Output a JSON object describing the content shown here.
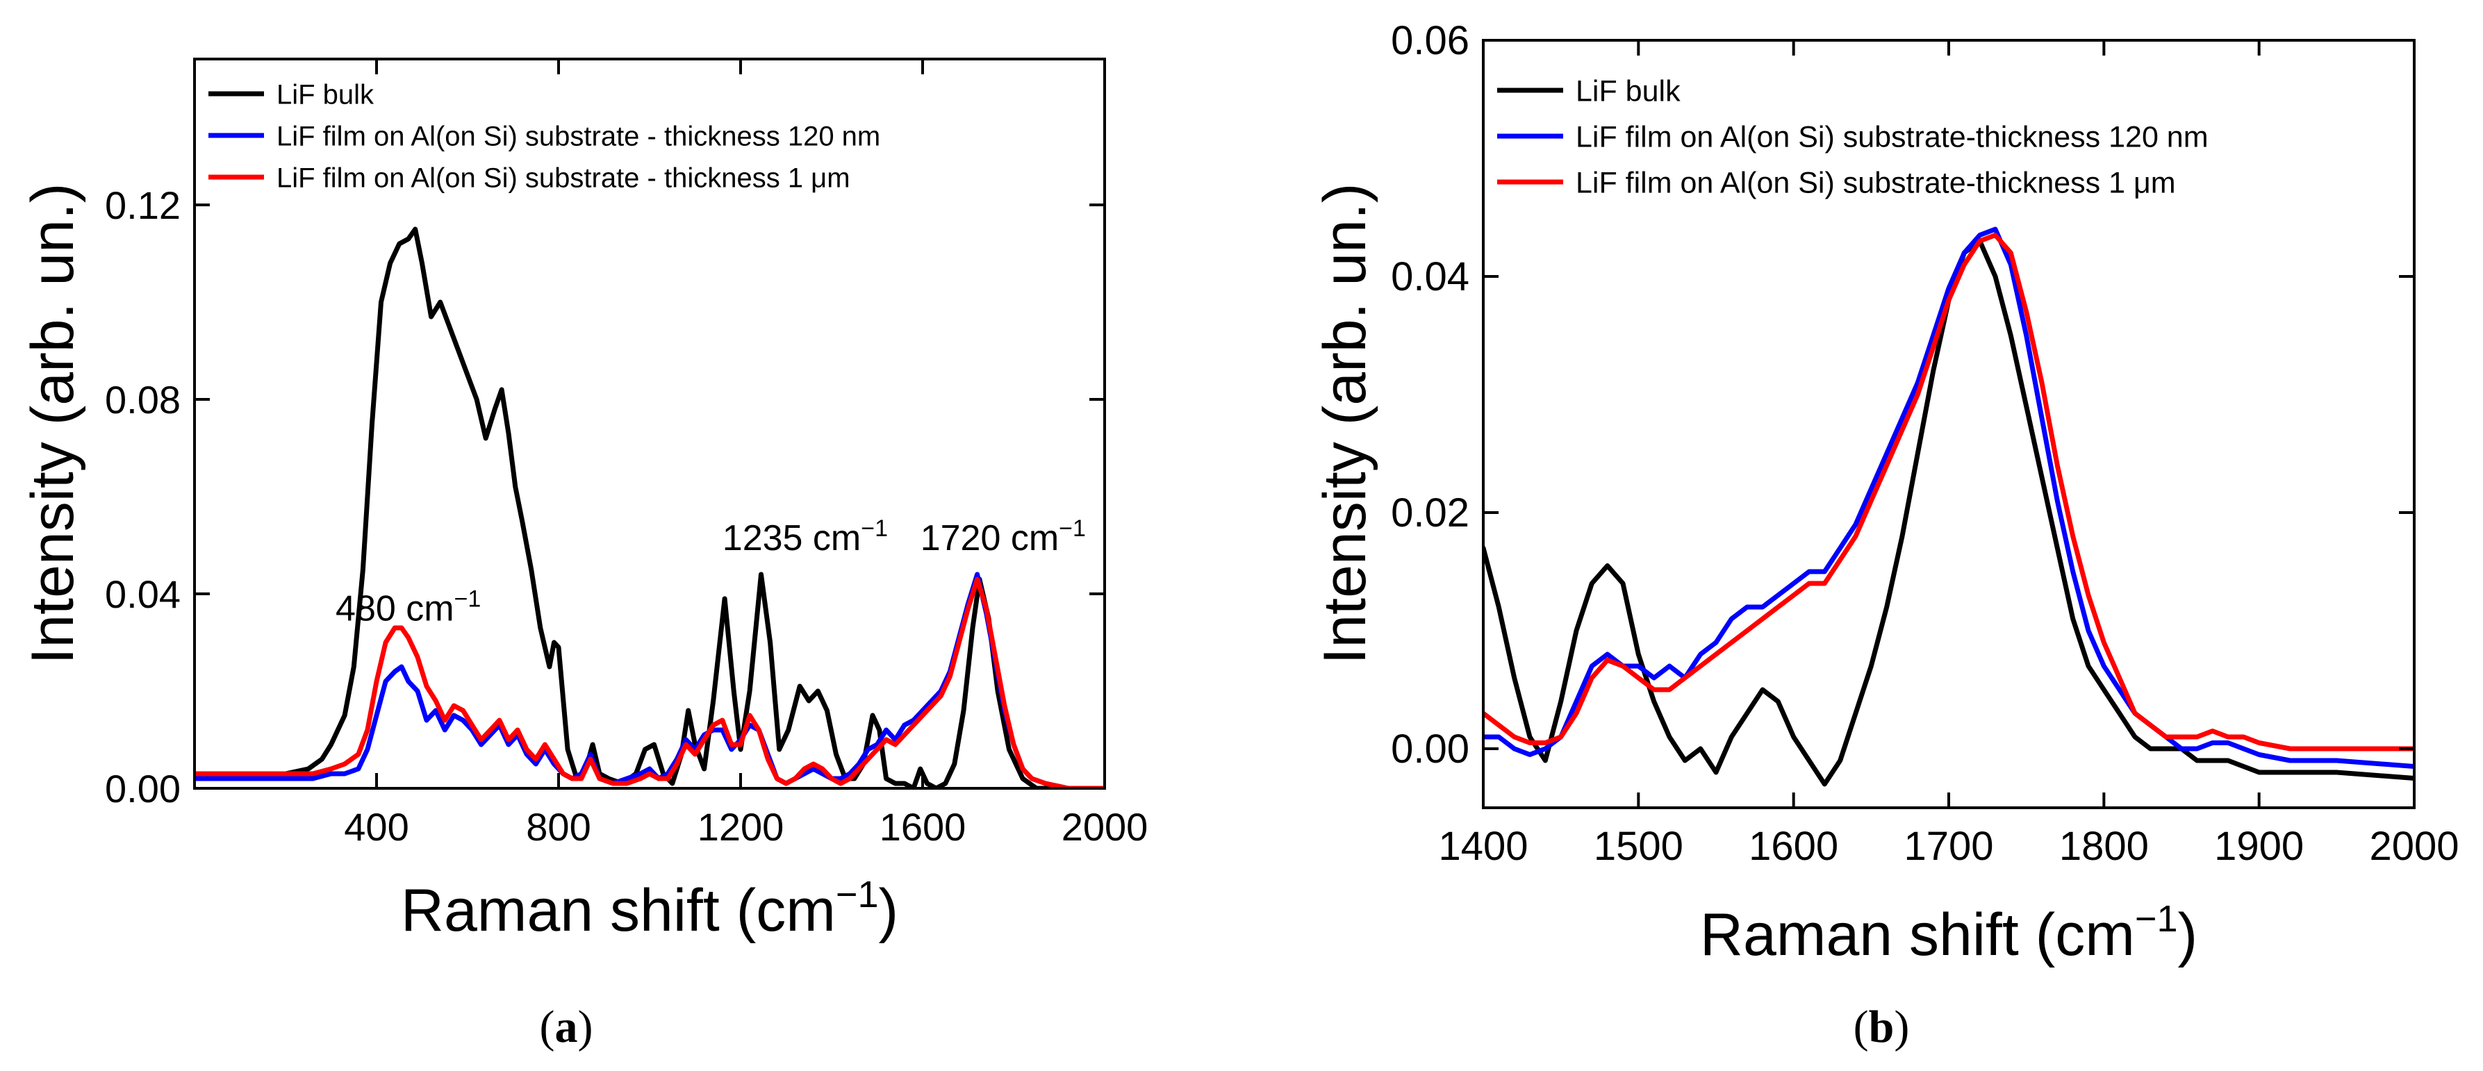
{
  "figure": {
    "panel_a_letter": "a",
    "panel_b_letter": "b"
  },
  "chart_data": [
    {
      "type": "line",
      "panel": "(a)",
      "xlabel_main": "Raman shift (cm",
      "xlabel_sup": "−1",
      "xlabel_close": ")",
      "ylabel": "Intensity (arb. un.)",
      "xlim": [
        0,
        2000
      ],
      "ylim": [
        0,
        0.15
      ],
      "xticks": [
        400,
        800,
        1200,
        1600,
        2000
      ],
      "yticks": [
        0.0,
        0.04,
        0.08,
        0.12
      ],
      "ytick_labels": [
        "0.00",
        "0.04",
        "0.08",
        "0.12"
      ],
      "legend_position": "top-left",
      "annotations": [
        {
          "main": "480 cm",
          "sup": "−1",
          "x": 310,
          "y": 0.0345
        },
        {
          "main": "1235 cm",
          "sup": "−1",
          "x": 1160,
          "y": 0.049
        },
        {
          "main": "1720 cm",
          "sup": "−1",
          "x": 1595,
          "y": 0.049
        }
      ],
      "series": [
        {
          "name": "LiF bulk",
          "color": "#000000",
          "x": [
            0,
            100,
            200,
            250,
            280,
            300,
            330,
            350,
            370,
            390,
            410,
            430,
            450,
            470,
            485,
            500,
            520,
            540,
            560,
            580,
            600,
            620,
            640,
            660,
            675,
            690,
            705,
            720,
            740,
            760,
            780,
            790,
            800,
            820,
            840,
            860,
            875,
            890,
            910,
            940,
            970,
            990,
            1010,
            1030,
            1050,
            1070,
            1085,
            1100,
            1120,
            1140,
            1165,
            1185,
            1200,
            1220,
            1245,
            1265,
            1285,
            1305,
            1330,
            1350,
            1370,
            1390,
            1410,
            1430,
            1450,
            1470,
            1490,
            1505,
            1520,
            1540,
            1560,
            1580,
            1595,
            1610,
            1630,
            1650,
            1670,
            1690,
            1710,
            1725,
            1745,
            1765,
            1790,
            1820,
            1850,
            1900,
            2000
          ],
          "values": [
            0.003,
            0.003,
            0.003,
            0.004,
            0.006,
            0.009,
            0.015,
            0.025,
            0.045,
            0.075,
            0.1,
            0.108,
            0.112,
            0.113,
            0.115,
            0.108,
            0.097,
            0.1,
            0.095,
            0.09,
            0.085,
            0.08,
            0.072,
            0.078,
            0.082,
            0.073,
            0.062,
            0.055,
            0.045,
            0.033,
            0.025,
            0.03,
            0.029,
            0.008,
            0.002,
            0.004,
            0.009,
            0.003,
            0.002,
            0.001,
            0.003,
            0.008,
            0.009,
            0.003,
            0.001,
            0.007,
            0.016,
            0.009,
            0.004,
            0.018,
            0.039,
            0.02,
            0.008,
            0.02,
            0.044,
            0.03,
            0.008,
            0.012,
            0.021,
            0.018,
            0.02,
            0.016,
            0.007,
            0.002,
            0.002,
            0.005,
            0.015,
            0.012,
            0.002,
            0.001,
            0.001,
            0.0,
            0.004,
            0.001,
            0.0,
            0.001,
            0.005,
            0.016,
            0.033,
            0.043,
            0.035,
            0.02,
            0.008,
            0.002,
            0.0,
            0.0,
            0.0
          ]
        },
        {
          "name": "LiF film on Al(on Si) substrate - thickness 120 nm",
          "color": "#0000ff",
          "x": [
            0,
            100,
            200,
            260,
            300,
            330,
            360,
            380,
            400,
            420,
            440,
            455,
            470,
            490,
            510,
            530,
            550,
            570,
            590,
            610,
            630,
            650,
            670,
            690,
            710,
            730,
            750,
            770,
            790,
            810,
            830,
            850,
            870,
            890,
            920,
            950,
            980,
            1000,
            1020,
            1040,
            1060,
            1080,
            1100,
            1120,
            1140,
            1160,
            1180,
            1200,
            1220,
            1240,
            1260,
            1280,
            1300,
            1320,
            1340,
            1360,
            1380,
            1400,
            1420,
            1440,
            1460,
            1480,
            1500,
            1520,
            1540,
            1560,
            1580,
            1600,
            1620,
            1640,
            1660,
            1680,
            1700,
            1720,
            1740,
            1760,
            1780,
            1800,
            1820,
            1840,
            1870,
            1920,
            2000
          ],
          "values": [
            0.002,
            0.002,
            0.002,
            0.002,
            0.003,
            0.003,
            0.004,
            0.008,
            0.015,
            0.022,
            0.024,
            0.025,
            0.022,
            0.02,
            0.014,
            0.016,
            0.012,
            0.015,
            0.014,
            0.012,
            0.009,
            0.011,
            0.013,
            0.009,
            0.011,
            0.007,
            0.005,
            0.008,
            0.005,
            0.003,
            0.002,
            0.003,
            0.007,
            0.002,
            0.001,
            0.002,
            0.003,
            0.004,
            0.002,
            0.003,
            0.006,
            0.01,
            0.008,
            0.011,
            0.012,
            0.012,
            0.008,
            0.01,
            0.013,
            0.012,
            0.007,
            0.002,
            0.001,
            0.002,
            0.003,
            0.004,
            0.003,
            0.002,
            0.002,
            0.003,
            0.005,
            0.008,
            0.009,
            0.012,
            0.01,
            0.013,
            0.014,
            0.016,
            0.018,
            0.02,
            0.024,
            0.031,
            0.038,
            0.044,
            0.036,
            0.026,
            0.016,
            0.009,
            0.004,
            0.002,
            0.001,
            0.0,
            0.0
          ]
        },
        {
          "name": "LiF film on Al(on Si)  substrate - thickness 1 μm",
          "color": "#ff0000",
          "x": [
            0,
            100,
            200,
            260,
            300,
            330,
            360,
            380,
            400,
            420,
            440,
            455,
            470,
            490,
            510,
            530,
            550,
            570,
            590,
            610,
            630,
            650,
            670,
            690,
            710,
            730,
            750,
            770,
            790,
            810,
            830,
            850,
            870,
            890,
            920,
            950,
            980,
            1000,
            1020,
            1040,
            1060,
            1080,
            1100,
            1120,
            1140,
            1160,
            1180,
            1200,
            1220,
            1240,
            1260,
            1280,
            1300,
            1320,
            1340,
            1360,
            1380,
            1400,
            1420,
            1440,
            1460,
            1480,
            1500,
            1520,
            1540,
            1560,
            1580,
            1600,
            1620,
            1640,
            1660,
            1680,
            1700,
            1720,
            1740,
            1760,
            1780,
            1800,
            1820,
            1840,
            1870,
            1920,
            2000
          ],
          "values": [
            0.003,
            0.003,
            0.003,
            0.003,
            0.004,
            0.005,
            0.007,
            0.012,
            0.022,
            0.03,
            0.033,
            0.033,
            0.031,
            0.027,
            0.021,
            0.018,
            0.014,
            0.017,
            0.016,
            0.013,
            0.01,
            0.012,
            0.014,
            0.01,
            0.012,
            0.008,
            0.006,
            0.009,
            0.006,
            0.003,
            0.002,
            0.002,
            0.006,
            0.002,
            0.001,
            0.001,
            0.002,
            0.003,
            0.002,
            0.002,
            0.005,
            0.009,
            0.007,
            0.01,
            0.013,
            0.014,
            0.009,
            0.009,
            0.015,
            0.012,
            0.006,
            0.002,
            0.001,
            0.002,
            0.004,
            0.005,
            0.004,
            0.002,
            0.001,
            0.002,
            0.004,
            0.006,
            0.008,
            0.01,
            0.009,
            0.011,
            0.013,
            0.015,
            0.017,
            0.019,
            0.023,
            0.03,
            0.037,
            0.043,
            0.037,
            0.027,
            0.017,
            0.009,
            0.004,
            0.002,
            0.001,
            0.0,
            0.0
          ]
        }
      ]
    },
    {
      "type": "line",
      "panel": "(b)",
      "xlabel_main": "Raman shift (cm",
      "xlabel_sup": "−1",
      "xlabel_close": ")",
      "ylabel": "Intensity (arb. un.)",
      "xlim": [
        1400,
        2000
      ],
      "ylim": [
        -0.005,
        0.06
      ],
      "xticks": [
        1400,
        1500,
        1600,
        1700,
        1800,
        1900,
        2000
      ],
      "yticks": [
        0.0,
        0.02,
        0.04,
        0.06
      ],
      "ytick_labels": [
        "0.00",
        "0.02",
        "0.04",
        "0.06"
      ],
      "legend_position": "top-left",
      "series": [
        {
          "name": "LiF bulk",
          "color": "#000000",
          "x": [
            1400,
            1410,
            1420,
            1430,
            1440,
            1450,
            1460,
            1470,
            1480,
            1490,
            1500,
            1510,
            1520,
            1530,
            1540,
            1550,
            1560,
            1570,
            1580,
            1590,
            1600,
            1610,
            1620,
            1630,
            1640,
            1650,
            1660,
            1670,
            1680,
            1690,
            1700,
            1710,
            1720,
            1730,
            1740,
            1750,
            1760,
            1770,
            1780,
            1790,
            1800,
            1810,
            1820,
            1830,
            1840,
            1850,
            1860,
            1870,
            1880,
            1890,
            1900,
            1920,
            1950,
            2000
          ],
          "values": [
            0.017,
            0.012,
            0.006,
            0.001,
            -0.001,
            0.004,
            0.01,
            0.014,
            0.0155,
            0.014,
            0.008,
            0.004,
            0.001,
            -0.001,
            0.0,
            -0.002,
            0.001,
            0.003,
            0.005,
            0.004,
            0.001,
            -0.001,
            -0.003,
            -0.001,
            0.003,
            0.007,
            0.012,
            0.018,
            0.025,
            0.032,
            0.038,
            0.042,
            0.043,
            0.04,
            0.035,
            0.029,
            0.023,
            0.017,
            0.011,
            0.007,
            0.005,
            0.003,
            0.001,
            0.0,
            0.0,
            0.0,
            -0.001,
            -0.001,
            -0.001,
            -0.0015,
            -0.002,
            -0.002,
            -0.002,
            -0.0025
          ]
        },
        {
          "name": "LiF film on Al(on Si) substrate-thickness 120 nm",
          "color": "#0000ff",
          "x": [
            1400,
            1410,
            1420,
            1430,
            1440,
            1450,
            1460,
            1470,
            1480,
            1490,
            1500,
            1510,
            1520,
            1530,
            1540,
            1550,
            1560,
            1570,
            1580,
            1590,
            1600,
            1610,
            1620,
            1630,
            1640,
            1650,
            1660,
            1670,
            1680,
            1690,
            1700,
            1710,
            1720,
            1730,
            1740,
            1750,
            1760,
            1770,
            1780,
            1790,
            1800,
            1810,
            1820,
            1830,
            1840,
            1850,
            1860,
            1870,
            1880,
            1890,
            1900,
            1920,
            1950,
            2000
          ],
          "values": [
            0.001,
            0.001,
            0.0,
            -0.0005,
            0.0,
            0.001,
            0.004,
            0.007,
            0.008,
            0.007,
            0.007,
            0.006,
            0.007,
            0.006,
            0.008,
            0.009,
            0.011,
            0.012,
            0.012,
            0.013,
            0.014,
            0.015,
            0.015,
            0.017,
            0.019,
            0.022,
            0.025,
            0.028,
            0.031,
            0.035,
            0.039,
            0.042,
            0.0435,
            0.044,
            0.041,
            0.035,
            0.028,
            0.021,
            0.015,
            0.01,
            0.007,
            0.005,
            0.003,
            0.002,
            0.001,
            0.0,
            0.0,
            0.0005,
            0.0005,
            0.0,
            -0.0005,
            -0.001,
            -0.001,
            -0.0015
          ]
        },
        {
          "name": "LiF film on Al(on Si)  substrate-thickness 1 μm",
          "color": "#ff0000",
          "x": [
            1400,
            1410,
            1420,
            1430,
            1440,
            1450,
            1460,
            1470,
            1480,
            1490,
            1500,
            1510,
            1520,
            1530,
            1540,
            1550,
            1560,
            1570,
            1580,
            1590,
            1600,
            1610,
            1620,
            1630,
            1640,
            1650,
            1660,
            1670,
            1680,
            1690,
            1700,
            1710,
            1720,
            1730,
            1740,
            1750,
            1760,
            1770,
            1780,
            1790,
            1800,
            1810,
            1820,
            1830,
            1840,
            1850,
            1860,
            1870,
            1880,
            1890,
            1900,
            1920,
            1950,
            2000
          ],
          "values": [
            0.003,
            0.002,
            0.001,
            0.0005,
            0.0005,
            0.001,
            0.003,
            0.006,
            0.0075,
            0.007,
            0.006,
            0.005,
            0.005,
            0.006,
            0.007,
            0.008,
            0.009,
            0.01,
            0.011,
            0.012,
            0.013,
            0.014,
            0.014,
            0.016,
            0.018,
            0.021,
            0.024,
            0.027,
            0.03,
            0.034,
            0.038,
            0.041,
            0.043,
            0.0435,
            0.042,
            0.037,
            0.031,
            0.024,
            0.018,
            0.013,
            0.009,
            0.006,
            0.003,
            0.002,
            0.001,
            0.001,
            0.001,
            0.0015,
            0.001,
            0.001,
            0.0005,
            0.0,
            0.0,
            0.0
          ]
        }
      ]
    }
  ]
}
